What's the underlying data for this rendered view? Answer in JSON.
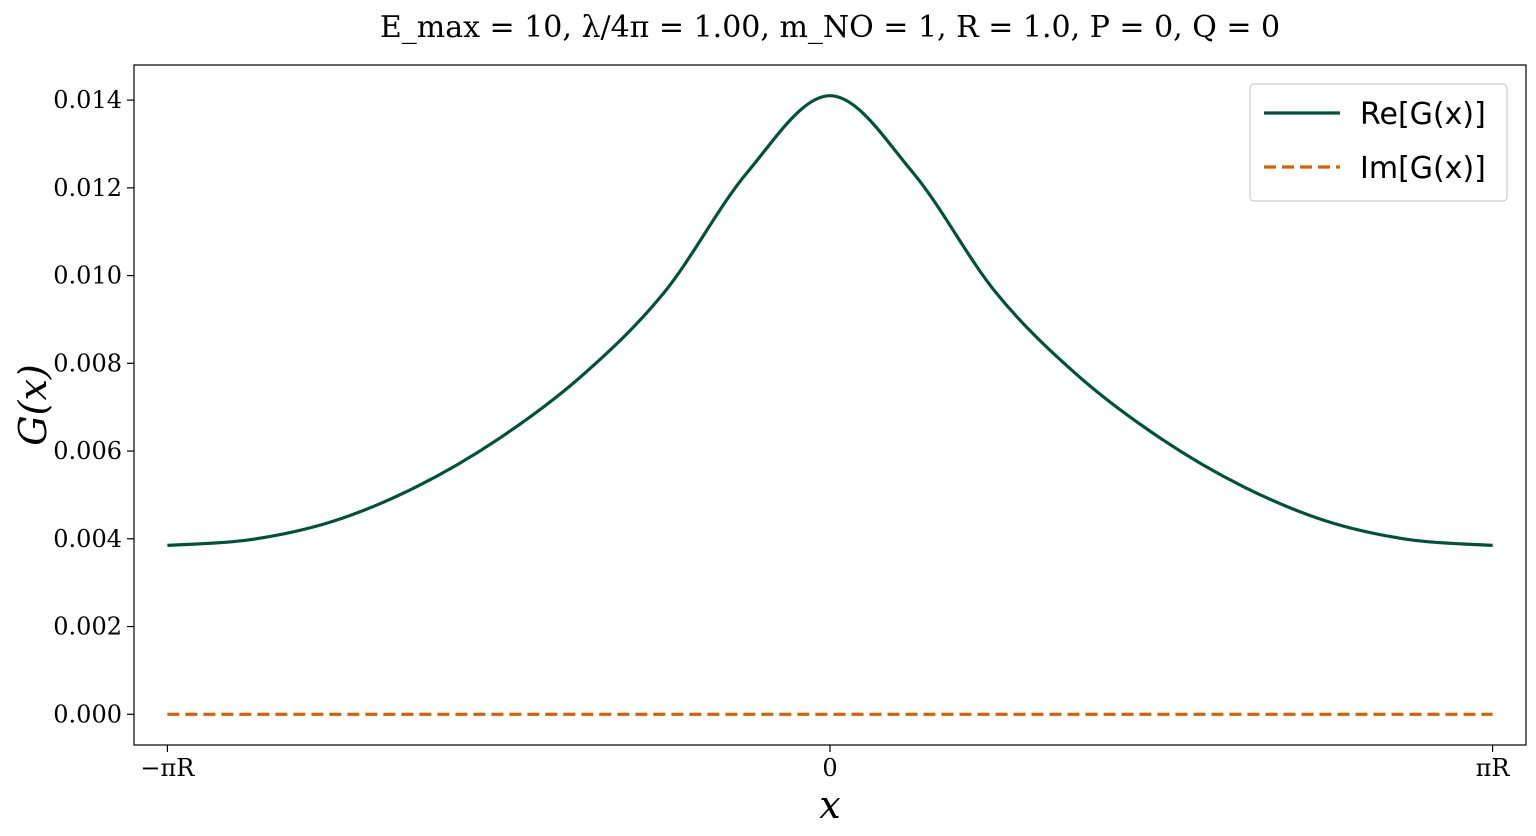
{
  "chart_data": {
    "type": "line",
    "title": "E_max = 10,   λ/4π = 1.00,   m_NO = 1,   R = 1.0,   P = 0,   Q = 0",
    "xlabel": "x",
    "ylabel": "G(x)",
    "xlim": [
      -3.3,
      3.3
    ],
    "ylim": [
      -0.0007,
      0.0148
    ],
    "x_ticks": [
      {
        "value": -3.14159,
        "label": "−πR"
      },
      {
        "value": 0,
        "label": "0"
      },
      {
        "value": 3.14159,
        "label": "πR"
      }
    ],
    "y_ticks": [
      {
        "value": 0.0,
        "label": "0.000"
      },
      {
        "value": 0.002,
        "label": "0.002"
      },
      {
        "value": 0.004,
        "label": "0.004"
      },
      {
        "value": 0.006,
        "label": "0.006"
      },
      {
        "value": 0.008,
        "label": "0.008"
      },
      {
        "value": 0.01,
        "label": "0.010"
      },
      {
        "value": 0.012,
        "label": "0.012"
      },
      {
        "value": 0.014,
        "label": "0.014"
      }
    ],
    "grid": false,
    "legend_position": "top-right",
    "series": [
      {
        "name": "Re[G(x)]",
        "color": "#00533a",
        "style": "solid",
        "x": [
          -3.1416,
          -2.7489,
          -2.3562,
          -1.9635,
          -1.5708,
          -1.1781,
          -0.7854,
          -0.3927,
          0,
          0.3927,
          0.7854,
          1.1781,
          1.5708,
          1.9635,
          2.3562,
          2.7489,
          3.1416
        ],
        "y": [
          0.00385,
          0.00398,
          0.0044,
          0.00518,
          0.00628,
          0.00771,
          0.00962,
          0.01235,
          0.0141,
          0.01235,
          0.00962,
          0.00771,
          0.00628,
          0.00518,
          0.0044,
          0.00398,
          0.00385
        ]
      },
      {
        "name": "Im[G(x)]",
        "color": "#d95f02",
        "style": "dashed",
        "x": [
          -3.1416,
          3.1416
        ],
        "y": [
          0,
          0
        ]
      }
    ]
  }
}
